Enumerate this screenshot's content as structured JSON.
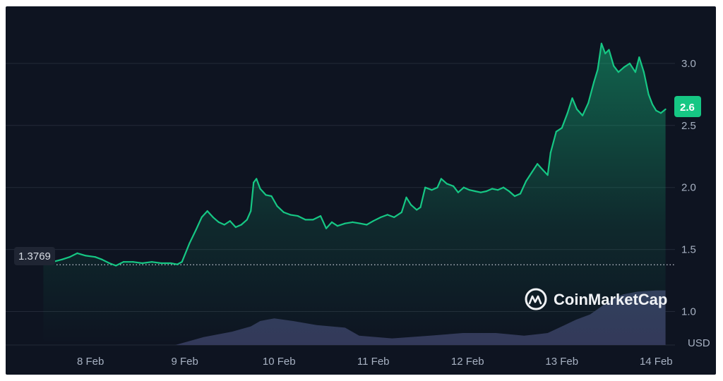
{
  "chart_data": {
    "type": "line",
    "currency": "USD",
    "watermark": "CoinMarketCap",
    "current_price_label": "2.6",
    "reference_line_label": "1.3769",
    "reference_value": 1.3769,
    "ylim": [
      0.73,
      3.46
    ],
    "y_ticks": [
      {
        "value": 1.0,
        "label": "1.0"
      },
      {
        "value": 1.5,
        "label": "1.5"
      },
      {
        "value": 2.0,
        "label": "2.0"
      },
      {
        "value": 2.5,
        "label": "2.5"
      },
      {
        "value": 3.0,
        "label": "3.0"
      }
    ],
    "x_ticks": [
      {
        "value": 1.0,
        "label": "8 Feb"
      },
      {
        "value": 2.0,
        "label": "9 Feb"
      },
      {
        "value": 3.0,
        "label": "10 Feb"
      },
      {
        "value": 4.0,
        "label": "11 Feb"
      },
      {
        "value": 5.0,
        "label": "12 Feb"
      },
      {
        "value": 6.0,
        "label": "13 Feb"
      },
      {
        "value": 7.0,
        "label": "14 Feb"
      }
    ],
    "xlim": [
      0.1,
      7.2
    ],
    "colors": {
      "up": "#16c784",
      "down": "#ea3943",
      "volume": "#33395a",
      "grid": "#232a38"
    },
    "price_series": [
      {
        "x": 0.5,
        "y": 1.38
      },
      {
        "x": 0.6,
        "y": 1.4
      },
      {
        "x": 0.7,
        "y": 1.42
      },
      {
        "x": 0.78,
        "y": 1.44
      },
      {
        "x": 0.86,
        "y": 1.47
      },
      {
        "x": 0.95,
        "y": 1.45
      },
      {
        "x": 1.05,
        "y": 1.44
      },
      {
        "x": 1.12,
        "y": 1.42
      },
      {
        "x": 1.2,
        "y": 1.39
      },
      {
        "x": 1.27,
        "y": 1.37
      },
      {
        "x": 1.35,
        "y": 1.4
      },
      {
        "x": 1.45,
        "y": 1.4
      },
      {
        "x": 1.55,
        "y": 1.39
      },
      {
        "x": 1.65,
        "y": 1.4
      },
      {
        "x": 1.75,
        "y": 1.39
      },
      {
        "x": 1.85,
        "y": 1.39
      },
      {
        "x": 1.92,
        "y": 1.38
      },
      {
        "x": 1.97,
        "y": 1.4
      },
      {
        "x": 2.05,
        "y": 1.55
      },
      {
        "x": 2.12,
        "y": 1.66
      },
      {
        "x": 2.18,
        "y": 1.76
      },
      {
        "x": 2.24,
        "y": 1.81
      },
      {
        "x": 2.3,
        "y": 1.76
      },
      {
        "x": 2.36,
        "y": 1.72
      },
      {
        "x": 2.42,
        "y": 1.7
      },
      {
        "x": 2.48,
        "y": 1.73
      },
      {
        "x": 2.54,
        "y": 1.68
      },
      {
        "x": 2.6,
        "y": 1.7
      },
      {
        "x": 2.66,
        "y": 1.74
      },
      {
        "x": 2.7,
        "y": 1.81
      },
      {
        "x": 2.73,
        "y": 2.04
      },
      {
        "x": 2.76,
        "y": 2.07
      },
      {
        "x": 2.8,
        "y": 1.99
      },
      {
        "x": 2.86,
        "y": 1.94
      },
      {
        "x": 2.92,
        "y": 1.93
      },
      {
        "x": 2.98,
        "y": 1.85
      },
      {
        "x": 3.05,
        "y": 1.8
      },
      {
        "x": 3.12,
        "y": 1.78
      },
      {
        "x": 3.2,
        "y": 1.77
      },
      {
        "x": 3.28,
        "y": 1.74
      },
      {
        "x": 3.36,
        "y": 1.74
      },
      {
        "x": 3.44,
        "y": 1.77
      },
      {
        "x": 3.5,
        "y": 1.67
      },
      {
        "x": 3.56,
        "y": 1.72
      },
      {
        "x": 3.62,
        "y": 1.69
      },
      {
        "x": 3.7,
        "y": 1.71
      },
      {
        "x": 3.78,
        "y": 1.72
      },
      {
        "x": 3.86,
        "y": 1.71
      },
      {
        "x": 3.93,
        "y": 1.7
      },
      {
        "x": 4.0,
        "y": 1.73
      },
      {
        "x": 4.08,
        "y": 1.76
      },
      {
        "x": 4.15,
        "y": 1.78
      },
      {
        "x": 4.22,
        "y": 1.76
      },
      {
        "x": 4.3,
        "y": 1.8
      },
      {
        "x": 4.35,
        "y": 1.92
      },
      {
        "x": 4.4,
        "y": 1.86
      },
      {
        "x": 4.46,
        "y": 1.82
      },
      {
        "x": 4.5,
        "y": 1.84
      },
      {
        "x": 4.55,
        "y": 2.0
      },
      {
        "x": 4.62,
        "y": 1.98
      },
      {
        "x": 4.68,
        "y": 2.0
      },
      {
        "x": 4.72,
        "y": 2.07
      },
      {
        "x": 4.78,
        "y": 2.03
      },
      {
        "x": 4.85,
        "y": 2.01
      },
      {
        "x": 4.9,
        "y": 1.96
      },
      {
        "x": 4.96,
        "y": 2.0
      },
      {
        "x": 5.02,
        "y": 1.98
      },
      {
        "x": 5.08,
        "y": 1.97
      },
      {
        "x": 5.14,
        "y": 1.96
      },
      {
        "x": 5.2,
        "y": 1.97
      },
      {
        "x": 5.26,
        "y": 1.99
      },
      {
        "x": 5.32,
        "y": 1.98
      },
      {
        "x": 5.38,
        "y": 2.0
      },
      {
        "x": 5.44,
        "y": 1.97
      },
      {
        "x": 5.5,
        "y": 1.93
      },
      {
        "x": 5.56,
        "y": 1.95
      },
      {
        "x": 5.62,
        "y": 2.05
      },
      {
        "x": 5.68,
        "y": 2.12
      },
      {
        "x": 5.74,
        "y": 2.19
      },
      {
        "x": 5.8,
        "y": 2.14
      },
      {
        "x": 5.85,
        "y": 2.1
      },
      {
        "x": 5.88,
        "y": 2.28
      },
      {
        "x": 5.94,
        "y": 2.45
      },
      {
        "x": 6.0,
        "y": 2.48
      },
      {
        "x": 6.06,
        "y": 2.6
      },
      {
        "x": 6.11,
        "y": 2.72
      },
      {
        "x": 6.16,
        "y": 2.63
      },
      {
        "x": 6.22,
        "y": 2.58
      },
      {
        "x": 6.28,
        "y": 2.68
      },
      {
        "x": 6.34,
        "y": 2.85
      },
      {
        "x": 6.38,
        "y": 2.95
      },
      {
        "x": 6.42,
        "y": 3.16
      },
      {
        "x": 6.46,
        "y": 3.08
      },
      {
        "x": 6.5,
        "y": 3.11
      },
      {
        "x": 6.55,
        "y": 2.98
      },
      {
        "x": 6.6,
        "y": 2.93
      },
      {
        "x": 6.66,
        "y": 2.97
      },
      {
        "x": 6.72,
        "y": 3.0
      },
      {
        "x": 6.78,
        "y": 2.93
      },
      {
        "x": 6.82,
        "y": 3.05
      },
      {
        "x": 6.87,
        "y": 2.93
      },
      {
        "x": 6.92,
        "y": 2.75
      },
      {
        "x": 6.96,
        "y": 2.67
      },
      {
        "x": 7.0,
        "y": 2.62
      },
      {
        "x": 7.05,
        "y": 2.6
      },
      {
        "x": 7.1,
        "y": 2.63
      }
    ],
    "volume_series": [
      {
        "x": 0.1,
        "v": 0.0
      },
      {
        "x": 1.9,
        "v": 0.0
      },
      {
        "x": 2.0,
        "v": 0.02
      },
      {
        "x": 2.2,
        "v": 0.06
      },
      {
        "x": 2.5,
        "v": 0.1
      },
      {
        "x": 2.7,
        "v": 0.14
      },
      {
        "x": 2.8,
        "v": 0.18
      },
      {
        "x": 2.95,
        "v": 0.2
      },
      {
        "x": 3.15,
        "v": 0.18
      },
      {
        "x": 3.4,
        "v": 0.15
      },
      {
        "x": 3.7,
        "v": 0.13
      },
      {
        "x": 3.85,
        "v": 0.07
      },
      {
        "x": 4.2,
        "v": 0.05
      },
      {
        "x": 4.6,
        "v": 0.07
      },
      {
        "x": 4.95,
        "v": 0.09
      },
      {
        "x": 5.3,
        "v": 0.09
      },
      {
        "x": 5.6,
        "v": 0.07
      },
      {
        "x": 5.85,
        "v": 0.09
      },
      {
        "x": 6.0,
        "v": 0.14
      },
      {
        "x": 6.15,
        "v": 0.19
      },
      {
        "x": 6.3,
        "v": 0.23
      },
      {
        "x": 6.5,
        "v": 0.33
      },
      {
        "x": 6.65,
        "v": 0.38
      },
      {
        "x": 6.8,
        "v": 0.4
      },
      {
        "x": 7.0,
        "v": 0.41
      },
      {
        "x": 7.1,
        "v": 0.41
      }
    ],
    "volume_max": 0.45
  }
}
